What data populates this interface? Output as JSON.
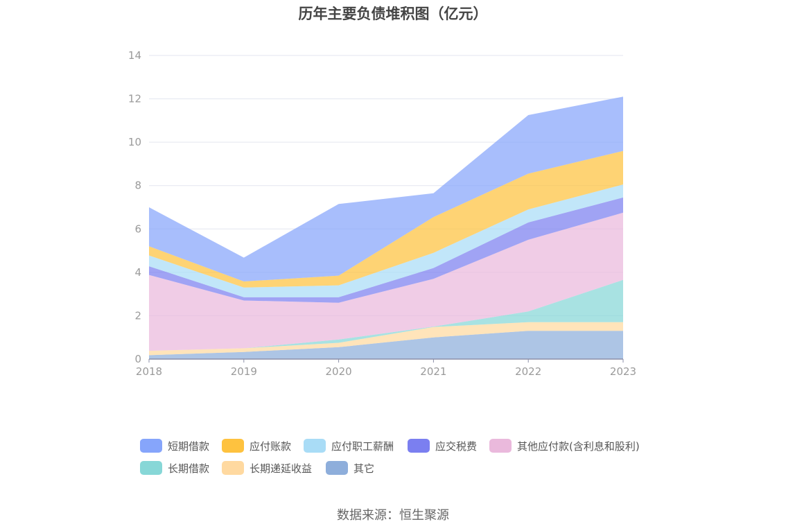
{
  "chart_data": {
    "type": "area",
    "stacked": true,
    "title": "历年主要负债堆积图（亿元）",
    "x": [
      "2018",
      "2019",
      "2020",
      "2021",
      "2022",
      "2023"
    ],
    "ylim": [
      0,
      14
    ],
    "yticks": [
      0,
      2,
      4,
      6,
      8,
      10,
      12,
      14
    ],
    "grid": true,
    "legend_position": "bottom",
    "series": [
      {
        "name": "其它",
        "color": "#8eaedb",
        "values": [
          0.18,
          0.33,
          0.55,
          1.0,
          1.3,
          1.3
        ]
      },
      {
        "name": "长期递延收益",
        "color": "#ffd9a0",
        "values": [
          0.2,
          0.17,
          0.2,
          0.48,
          0.4,
          0.4
        ]
      },
      {
        "name": "长期借款",
        "color": "#87d7d7",
        "values": [
          0.0,
          0.0,
          0.15,
          0.02,
          0.5,
          1.95
        ]
      },
      {
        "name": "其他应付款(含利息和股利)",
        "color": "#eab9dc",
        "values": [
          3.5,
          2.2,
          1.7,
          2.2,
          3.3,
          3.1
        ]
      },
      {
        "name": "应交税费",
        "color": "#7b7ff0",
        "values": [
          0.4,
          0.15,
          0.25,
          0.5,
          0.8,
          0.7
        ]
      },
      {
        "name": "应付职工薪酬",
        "color": "#a9dcf6",
        "values": [
          0.5,
          0.45,
          0.55,
          0.7,
          0.6,
          0.6
        ]
      },
      {
        "name": "应付账款",
        "color": "#fec23f",
        "values": [
          0.42,
          0.28,
          0.45,
          1.65,
          1.65,
          1.55
        ]
      },
      {
        "name": "短期借款",
        "color": "#86a5fb",
        "values": [
          1.8,
          1.1,
          3.3,
          1.1,
          2.7,
          2.5
        ]
      }
    ],
    "legend_order": [
      "短期借款",
      "应付账款",
      "应付职工薪酬",
      "应交税费",
      "其他应付款(含利息和股利)",
      "长期借款",
      "长期递延收益",
      "其它"
    ]
  },
  "source": "数据来源：恒生聚源"
}
